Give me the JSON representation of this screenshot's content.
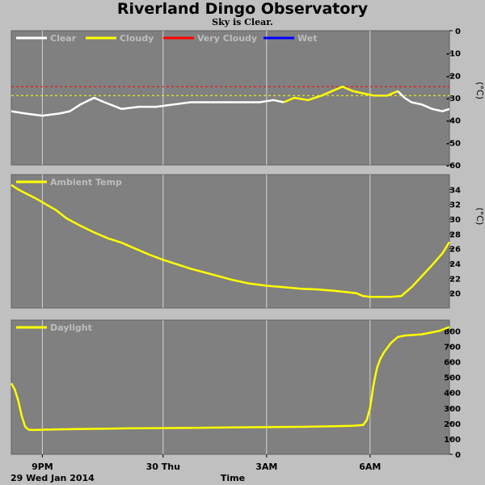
{
  "title": "Riverland Dingo Observatory",
  "subtitle": "Sky is Clear.",
  "colors": {
    "panel": "#808080",
    "background": "#c0c0c0",
    "grid": "#d4d4d4",
    "clear": "#ffffff",
    "cloudy": "#ffff00",
    "very_cloudy": "#ff0000",
    "wet": "#0000ff",
    "trace": "#ffff00"
  },
  "x_axis": {
    "label": "Time",
    "start_label": "29 Wed Jan 2014",
    "ticks": [
      {
        "t": 20.5,
        "label": "9PM"
      },
      {
        "t": 24.0,
        "label": "30 Thu"
      },
      {
        "t": 27.0,
        "label": "3AM"
      },
      {
        "t": 30.0,
        "label": "6AM"
      }
    ],
    "range": [
      19.6,
      32.3
    ]
  },
  "chart_data": [
    {
      "type": "line",
      "name": "sky",
      "legend": [
        "Clear",
        "Cloudy",
        "Very Cloudy",
        "Wet"
      ],
      "ylabel": "(°C)",
      "ylim": [
        -60,
        0
      ],
      "yticks": [
        0,
        -10,
        -20,
        -30,
        -40,
        -50,
        -60
      ],
      "thresholds": [
        {
          "name": "Very Cloudy",
          "value": -25,
          "color": "#ff0000"
        },
        {
          "name": "Cloudy",
          "value": -29,
          "color": "#ffff00"
        }
      ],
      "series": [
        {
          "name": "Clear",
          "color": "#ffffff",
          "x": [
            19.6,
            20.0,
            20.5,
            21.0,
            21.3,
            21.6,
            22.0,
            22.3,
            22.8,
            23.3,
            23.8,
            24.3,
            24.8,
            25.3,
            25.8,
            26.3,
            26.8,
            27.2,
            27.5
          ],
          "y": [
            -36,
            -37,
            -38,
            -37,
            -36,
            -33,
            -30,
            -32,
            -35,
            -34,
            -34,
            -33,
            -32,
            -32,
            -32,
            -32,
            -32,
            -31,
            -32
          ]
        },
        {
          "name": "Cloudy",
          "color": "#ffff00",
          "x": [
            27.5,
            27.8,
            28.2,
            28.6,
            28.9,
            29.2,
            29.5,
            29.8,
            30.1,
            30.5,
            30.8
          ],
          "y": [
            -32,
            -30,
            -31,
            -29,
            -27,
            -25,
            -27,
            -28,
            -29,
            -29,
            -27
          ]
        },
        {
          "name": "Clear",
          "color": "#ffffff",
          "x": [
            30.8,
            31.0,
            31.2,
            31.5,
            31.8,
            32.1,
            32.3
          ],
          "y": [
            -27,
            -30,
            -32,
            -33,
            -35,
            -36,
            -35
          ]
        }
      ]
    },
    {
      "type": "line",
      "name": "ambient",
      "legend": [
        "Ambient Temp"
      ],
      "ylabel": "(°C)",
      "ylim": [
        18,
        36
      ],
      "yticks": [
        20,
        22,
        24,
        26,
        28,
        30,
        32,
        34
      ],
      "series": [
        {
          "name": "Ambient Temp",
          "color": "#ffff00",
          "x": [
            19.6,
            19.8,
            20.0,
            20.3,
            20.6,
            20.9,
            21.2,
            21.6,
            22.0,
            22.4,
            22.8,
            23.2,
            23.6,
            24.0,
            24.4,
            24.8,
            25.2,
            25.6,
            26.0,
            26.5,
            27.0,
            27.5,
            28.0,
            28.5,
            29.0,
            29.4,
            29.6,
            29.8,
            30.0,
            30.3,
            30.6,
            30.9,
            31.2,
            31.5,
            31.8,
            32.1,
            32.3
          ],
          "y": [
            34.6,
            34.0,
            33.5,
            32.8,
            32.0,
            31.2,
            30.1,
            29.1,
            28.2,
            27.4,
            26.8,
            26.0,
            25.2,
            24.5,
            23.9,
            23.3,
            22.8,
            22.3,
            21.8,
            21.3,
            21.0,
            20.8,
            20.6,
            20.5,
            20.3,
            20.1,
            20.0,
            19.6,
            19.5,
            19.5,
            19.5,
            19.6,
            20.8,
            22.3,
            23.8,
            25.4,
            26.9
          ]
        }
      ]
    },
    {
      "type": "line",
      "name": "daylight",
      "legend": [
        "Daylight"
      ],
      "ylabel": "",
      "ylim": [
        0,
        870
      ],
      "yticks": [
        0,
        100,
        200,
        300,
        400,
        500,
        600,
        700,
        800
      ],
      "series": [
        {
          "name": "Daylight",
          "color": "#ffff00",
          "x": [
            19.6,
            19.7,
            19.8,
            19.9,
            20.0,
            20.1,
            20.2,
            20.3,
            20.6,
            21.0,
            22.0,
            23.0,
            24.0,
            25.0,
            26.0,
            27.0,
            28.0,
            29.0,
            29.5,
            29.8,
            29.9,
            30.0,
            30.1,
            30.2,
            30.3,
            30.4,
            30.6,
            30.8,
            31.0,
            31.5,
            32.0,
            32.3
          ],
          "y": [
            460,
            420,
            350,
            250,
            180,
            160,
            158,
            158,
            160,
            162,
            165,
            168,
            170,
            172,
            174,
            176,
            178,
            182,
            185,
            190,
            220,
            300,
            450,
            560,
            620,
            660,
            720,
            760,
            770,
            778,
            800,
            825
          ]
        }
      ]
    }
  ]
}
